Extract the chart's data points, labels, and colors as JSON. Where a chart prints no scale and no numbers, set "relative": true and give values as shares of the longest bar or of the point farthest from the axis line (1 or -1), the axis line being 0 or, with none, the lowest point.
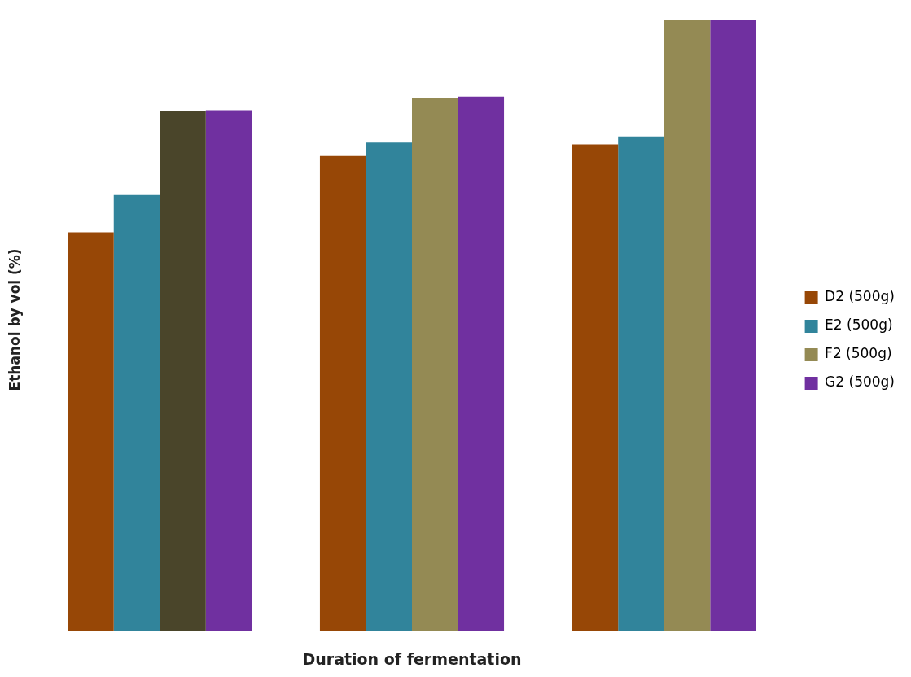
{
  "chart_data": {
    "type": "bar",
    "relative": true,
    "xlabel": "Duration of fermentation",
    "ylabel": "Ethanol by vol (%)",
    "categories": [
      null,
      null,
      null
    ],
    "legend": "right",
    "grid": false,
    "series": [
      {
        "name": "D2 (500g)",
        "color": "#974706",
        "values": [
          0.653,
          0.778,
          0.797
        ]
      },
      {
        "name": "E2 (500g)",
        "color": "#31849b",
        "values": [
          0.714,
          0.8,
          0.81
        ]
      },
      {
        "name": "F2 (500g)",
        "color": "#948a54",
        "colors": [
          "#4a452a",
          "#948a54",
          "#948a54"
        ],
        "values": [
          0.851,
          0.873,
          1
        ]
      },
      {
        "name": "G2 (500g)",
        "color": "#7030a0",
        "values": [
          0.853,
          0.875,
          1
        ]
      }
    ]
  }
}
